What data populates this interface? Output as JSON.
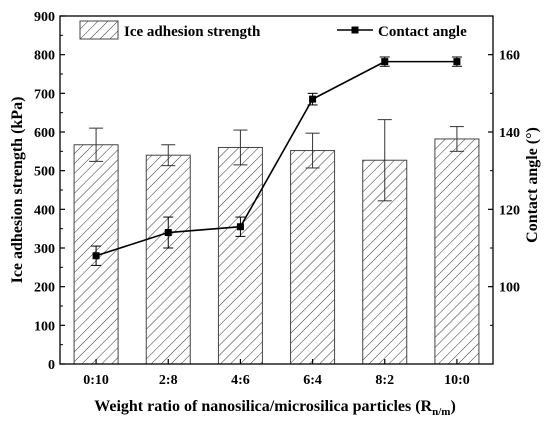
{
  "chart_data": {
    "type": "bar+line",
    "categories": [
      "0:10",
      "2:8",
      "4:6",
      "6:4",
      "8:2",
      "10:0"
    ],
    "xlabel_main": "Weight ratio of nanosilica/microsilica particles (R",
    "xlabel_sub": "n/m",
    "xlabel_end": ")",
    "ylabel_left": "Ice adhesion strength (kPa)",
    "ylabel_right": "Contact angle (°)",
    "left_axis": {
      "min": 0,
      "max": 900,
      "ticks": [
        "0",
        "100",
        "200",
        "300",
        "400",
        "500",
        "600",
        "700",
        "800",
        "900"
      ]
    },
    "right_axis": {
      "min": 80,
      "max": 170,
      "ticks": [
        "100",
        "120",
        "140",
        "160"
      ]
    },
    "series": [
      {
        "name": "Ice adhesion strength",
        "type": "bar",
        "axis": "left",
        "values": [
          567,
          540,
          560,
          552,
          527,
          582
        ],
        "errors": [
          43,
          27,
          45,
          45,
          105,
          32
        ]
      },
      {
        "name": "Contact angle",
        "type": "line",
        "axis": "right",
        "values": [
          108,
          114,
          115.5,
          148.5,
          158.2,
          158.2
        ],
        "errors": [
          2.5,
          4,
          2.5,
          1.5,
          1.2,
          1.2
        ]
      }
    ],
    "grid": false,
    "legend_position": "top"
  }
}
